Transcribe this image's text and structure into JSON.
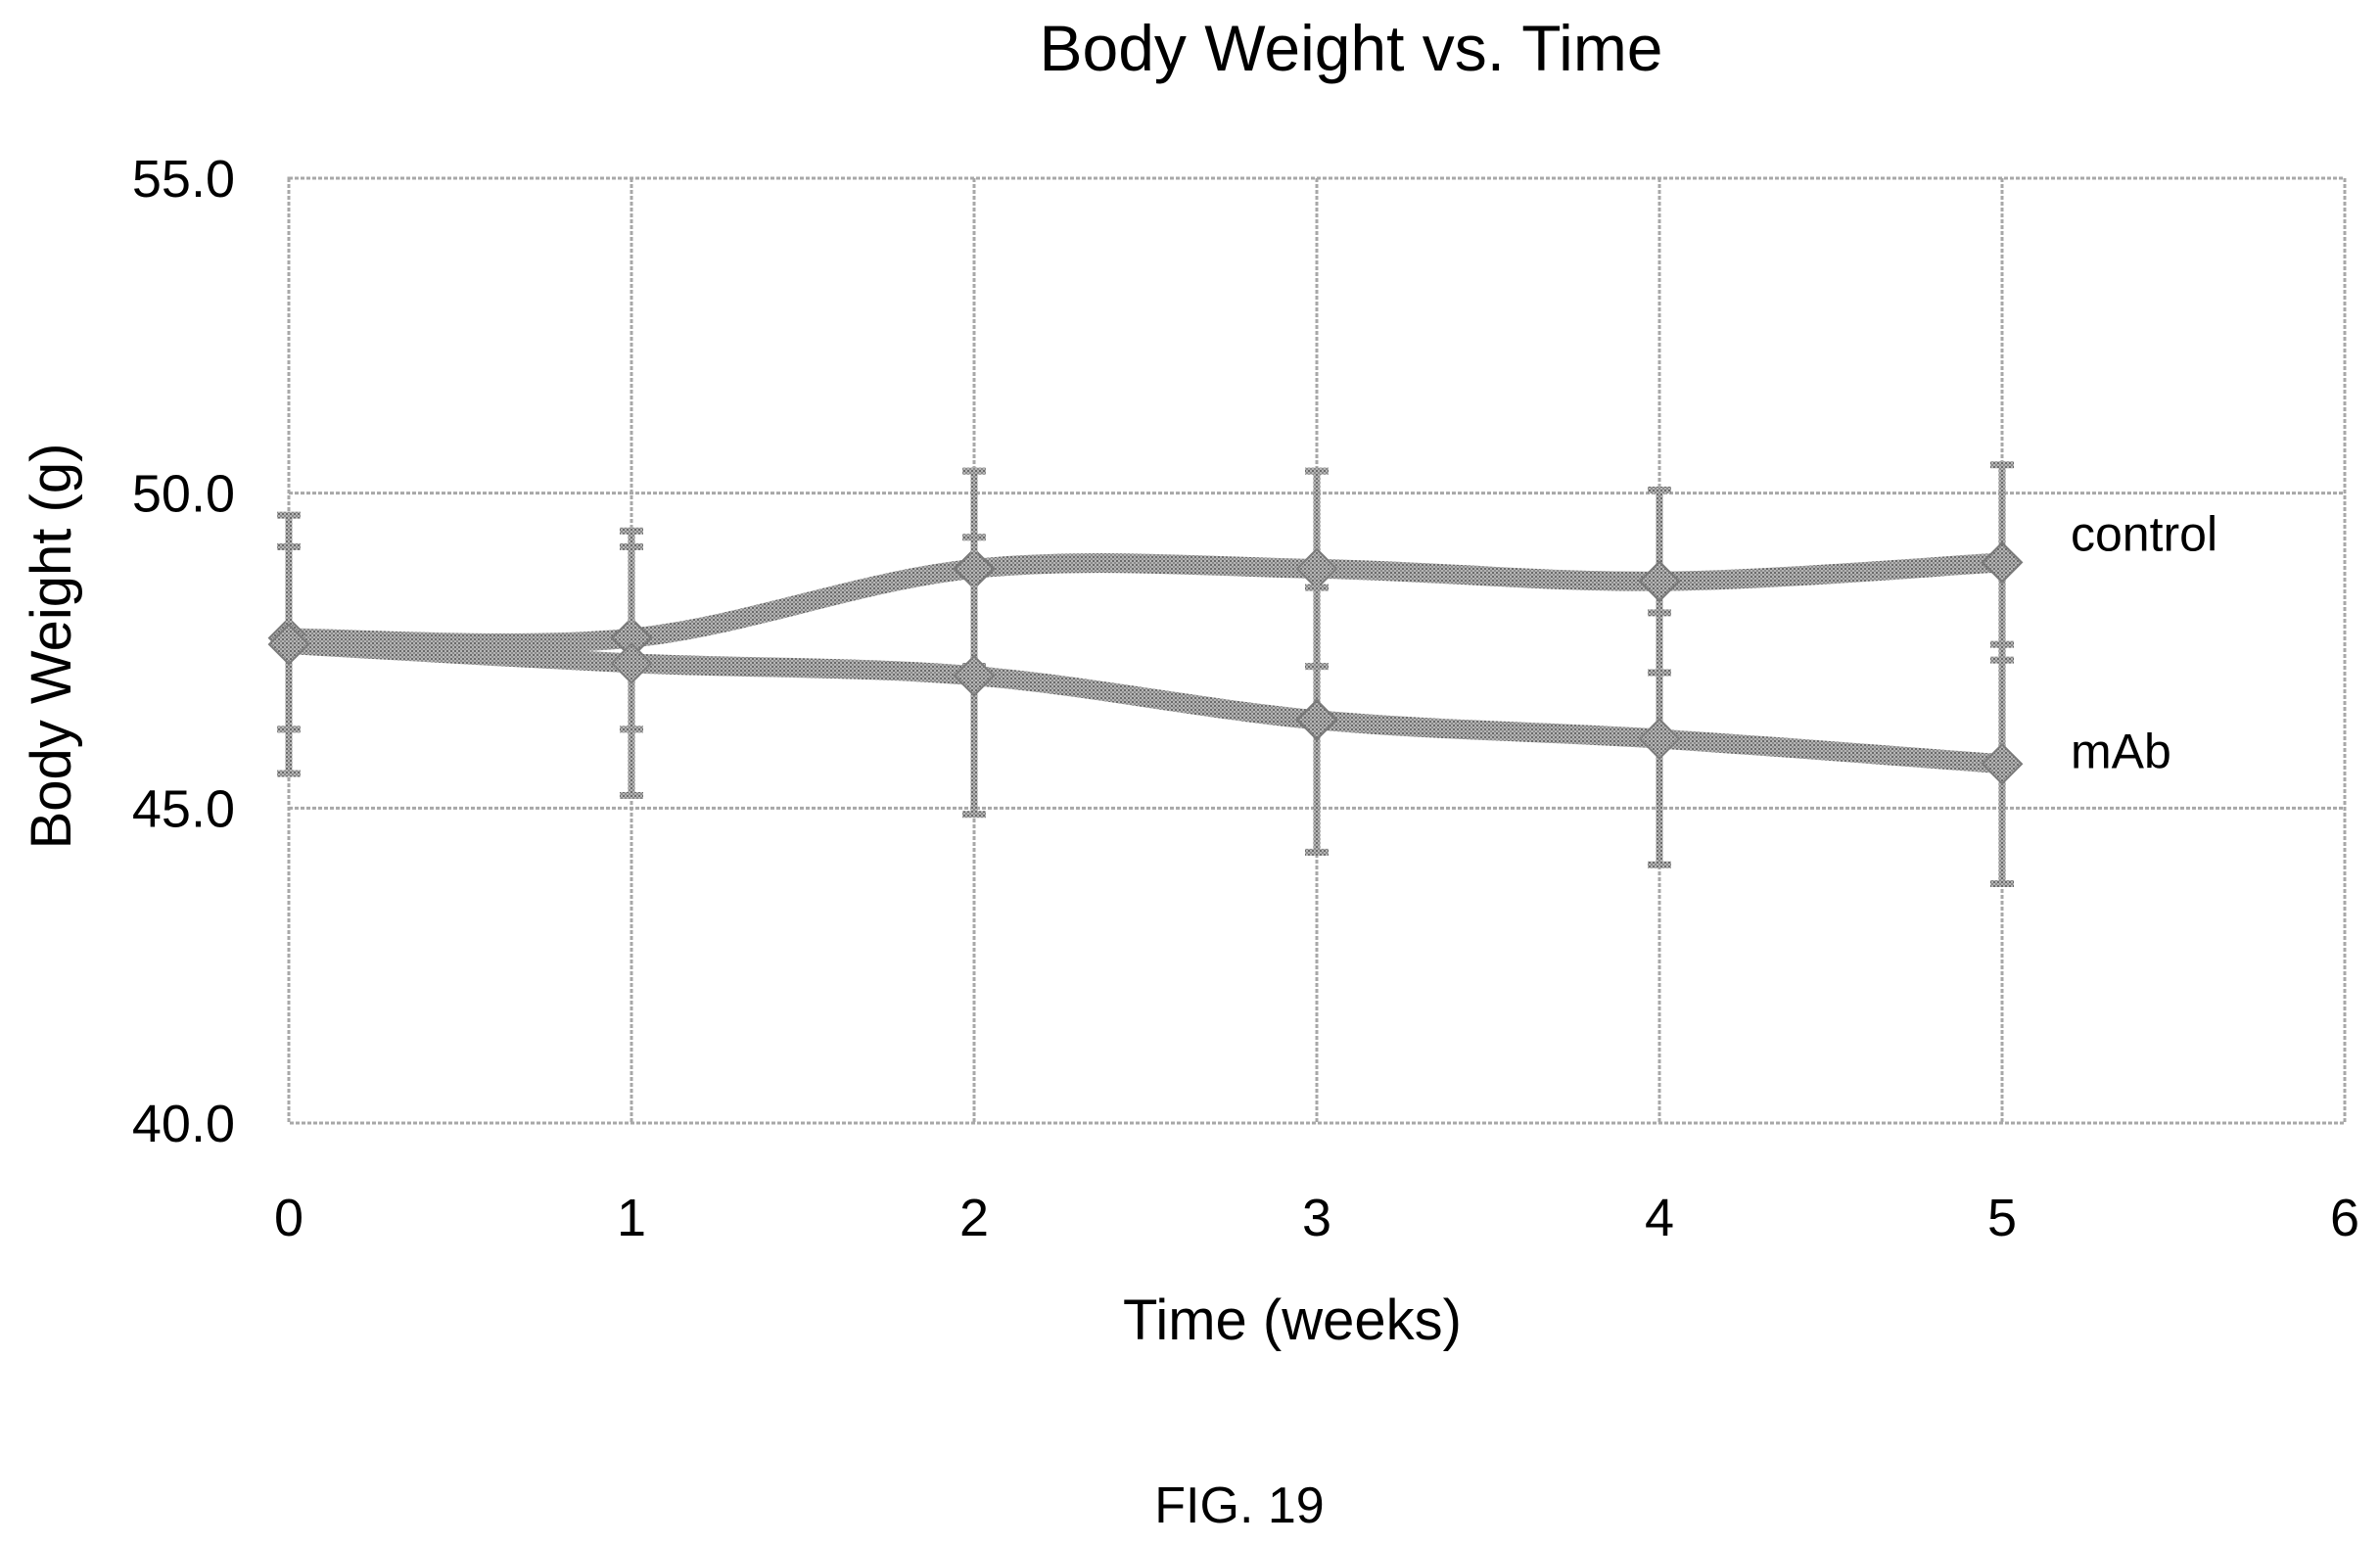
{
  "figure_label": "FIG. 19",
  "chart_data": {
    "type": "line",
    "title": "Body Weight vs. Time",
    "xlabel": "Time (weeks)",
    "ylabel": "Body Weight (g)",
    "xlim": [
      0,
      6
    ],
    "ylim": [
      40,
      55
    ],
    "x_ticks": [
      "0",
      "1",
      "2",
      "3",
      "4",
      "5",
      "6"
    ],
    "y_ticks": [
      "40.0",
      "45.0",
      "50.0",
      "55.0"
    ],
    "grid": true,
    "legend": "none (series labelled directly at right end of lines)",
    "x": [
      0,
      1,
      2,
      3,
      4,
      5
    ],
    "series": [
      {
        "name": "control",
        "values": [
          47.7,
          47.7,
          48.8,
          48.8,
          48.6,
          48.9
        ],
        "error": [
          1.45,
          1.45,
          1.55,
          1.55,
          1.45,
          1.55
        ]
      },
      {
        "name": "mAb",
        "values": [
          47.6,
          47.3,
          47.1,
          46.4,
          46.1,
          45.7
        ],
        "error": [
          2.05,
          2.1,
          2.2,
          2.1,
          2.0,
          1.9
        ]
      }
    ],
    "colors": {
      "series": "#9a9a9a",
      "grid": "#a8a8a8",
      "text": "#000000"
    }
  }
}
